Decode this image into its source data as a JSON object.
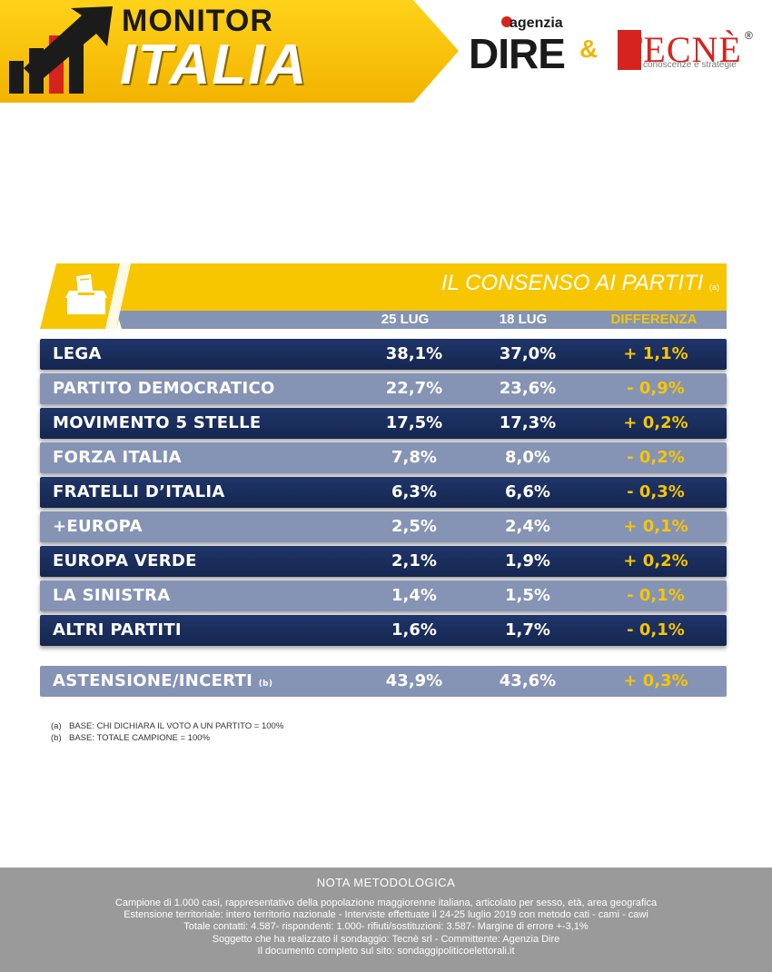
{
  "brand": {
    "monitor": "MONITOR",
    "italia": "ITALIA",
    "dire_agenzia": "agenzia",
    "dire": "DIRE",
    "ampersand": "&",
    "tecne": "TECNÈ",
    "tecne_reg": "®",
    "tecne_tagline": "conoscenze e strategie",
    "colors": {
      "yellow": "#f7c600",
      "navy": "#1b2f5f",
      "light_row": "#8593b5",
      "red": "#d7231e",
      "gray_footer": "#9a9a9a"
    }
  },
  "table": {
    "icon": "ballot-box-icon",
    "title": "IL CONSENSO AI PARTITI",
    "title_note": "(a)",
    "columns": [
      "25 LUG",
      "18 LUG",
      "DIFFERENZA"
    ],
    "rows": [
      {
        "party": "LEGA",
        "v1": "38,1%",
        "v2": "37,0%",
        "diff": "+ 1,1%"
      },
      {
        "party": "PARTITO DEMOCRATICO",
        "v1": "22,7%",
        "v2": "23,6%",
        "diff": "- 0,9%"
      },
      {
        "party": "MOVIMENTO 5 STELLE",
        "v1": "17,5%",
        "v2": "17,3%",
        "diff": "+ 0,2%"
      },
      {
        "party": "FORZA ITALIA",
        "v1": "7,8%",
        "v2": "8,0%",
        "diff": "- 0,2%"
      },
      {
        "party": "FRATELLI D’ITALIA",
        "v1": "6,3%",
        "v2": "6,6%",
        "diff": "- 0,3%"
      },
      {
        "party": "+EUROPA",
        "v1": "2,5%",
        "v2": "2,4%",
        "diff": "+ 0,1%"
      },
      {
        "party": "EUROPA VERDE",
        "v1": "2,1%",
        "v2": "1,9%",
        "diff": "+ 0,2%"
      },
      {
        "party": "LA SINISTRA",
        "v1": "1,4%",
        "v2": "1,5%",
        "diff": "- 0,1%"
      },
      {
        "party": "ALTRI PARTITI",
        "v1": "1,6%",
        "v2": "1,7%",
        "diff": "- 0,1%"
      }
    ],
    "abstention": {
      "party": "ASTENSIONE/INCERTI",
      "note": "(b)",
      "v1": "43,9%",
      "v2": "43,6%",
      "diff": "+ 0,3%"
    }
  },
  "footnotes": [
    {
      "mark": "(a)",
      "text": "BASE: CHI DICHIARA IL VOTO A UN PARTITO = 100%"
    },
    {
      "mark": "(b)",
      "text": "BASE: TOTALE CAMPIONE = 100%"
    }
  ],
  "method": {
    "title": "NOTA METODOLOGICA",
    "lines": [
      "Campione di 1.000 casi, rappresentativo della popolazione maggiorenne italiana, articolato per sesso, età, area geografica",
      "Estensione territoriale: intero territorio nazionale  - Interviste effettuate il 24-25 luglio 2019 con metodo cati - cami - cawi",
      "Totale contatti: 4.587- rispondenti:  1.000- rifiuti/sostituzioni: 3.587- Margine di errore +-3,1%",
      "Soggetto che ha realizzato il sondaggio: Tecnè srl - Committente: Agenzia Dire",
      "Il documento completo sul sito: sondaggipoliticoelettorali.it"
    ]
  }
}
